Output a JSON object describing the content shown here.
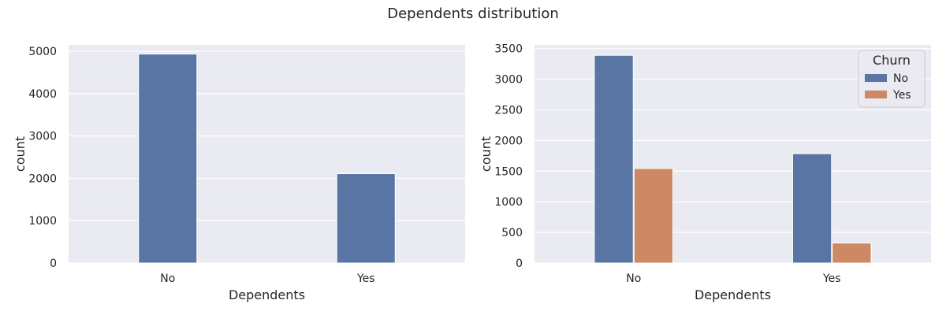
{
  "figure": {
    "title": "Dependents distribution"
  },
  "colors": {
    "background": "#eaeaf2",
    "grid": "#ffffff",
    "series_no": "#5875a4",
    "series_yes": "#cc8963"
  },
  "chart_data": [
    {
      "type": "bar",
      "title": "",
      "xlabel": "Dependents",
      "ylabel": "count",
      "categories": [
        "No",
        "Yes"
      ],
      "ylim": [
        0,
        5150
      ],
      "yticks": [
        0,
        1000,
        2000,
        3000,
        4000,
        5000
      ],
      "grid": true,
      "series": [
        {
          "values": [
            4933,
            2110
          ],
          "color": "#5875a4"
        }
      ]
    },
    {
      "type": "bar",
      "title": "",
      "xlabel": "Dependents",
      "ylabel": "count",
      "categories": [
        "No",
        "Yes"
      ],
      "ylim": [
        0,
        3560
      ],
      "yticks": [
        0,
        500,
        1000,
        1500,
        2000,
        2500,
        3000,
        3500
      ],
      "grid": true,
      "legend": {
        "title": "Churn",
        "placement": "top-right"
      },
      "series": [
        {
          "name": "No",
          "values": [
            3390,
            1784
          ],
          "color": "#5875a4"
        },
        {
          "name": "Yes",
          "values": [
            1543,
            326
          ],
          "color": "#cc8963"
        }
      ]
    }
  ]
}
